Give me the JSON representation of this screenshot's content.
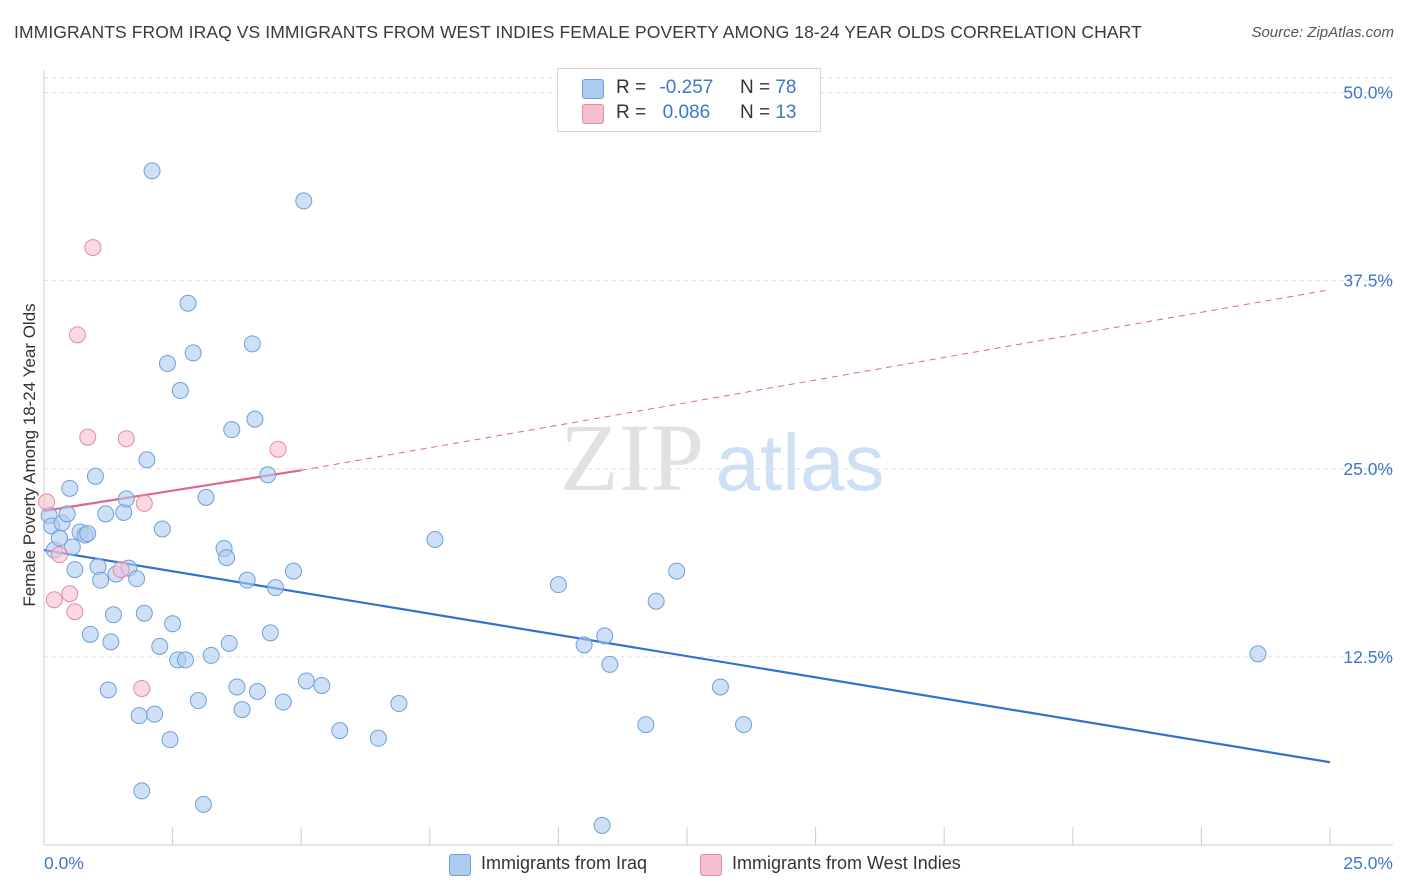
{
  "title": "IMMIGRANTS FROM IRAQ VS IMMIGRANTS FROM WEST INDIES FEMALE POVERTY AMONG 18-24 YEAR OLDS CORRELATION CHART",
  "source": "Source: ZipAtlas.com",
  "watermark": {
    "zip": "ZIP",
    "atlas": "atlas"
  },
  "legend": {
    "rows": [
      {
        "r_label": "R =",
        "r_value": "-0.257",
        "n_label": "N =",
        "n_value": "78"
      },
      {
        "r_label": "R =",
        "r_value": "0.086",
        "n_label": "N =",
        "n_value": "13"
      }
    ]
  },
  "colors": {
    "iraq_fill": "#aecbf0",
    "iraq_stroke": "#6f9fd8",
    "iraq_line": "#2f72cf",
    "wi_fill": "#f6bfd0",
    "wi_stroke": "#e48aa7",
    "wi_line": "#e0668f",
    "grid": "#dddddd",
    "tick_text": "#3c78c8"
  },
  "chart_data": {
    "type": "scatter",
    "title": "IMMIGRANTS FROM IRAQ VS IMMIGRANTS FROM WEST INDIES FEMALE POVERTY AMONG 18-24 YEAR OLDS CORRELATION CHART",
    "xlabel": "",
    "ylabel": "Female Poverty Among 18-24 Year Olds",
    "xlim": [
      0,
      25
    ],
    "ylim": [
      0,
      51.5
    ],
    "y_ticks": [
      12.5,
      25.0,
      37.5,
      50.0
    ],
    "y_tick_labels": [
      "12.5%",
      "25.0%",
      "37.5%",
      "50.0%"
    ],
    "x_tick_labels": [
      "0.0%",
      "25.0%"
    ],
    "grid": true,
    "legend_position": "top-center",
    "series": [
      {
        "name": "Immigrants from Iraq",
        "R": -0.257,
        "N": 78,
        "trend": {
          "x0": 0.0,
          "y0": 19.6,
          "x1": 25.0,
          "y1": 5.5,
          "dashed_extension": false
        },
        "points": [
          [
            0.1,
            21.9
          ],
          [
            0.15,
            21.2
          ],
          [
            0.2,
            19.6
          ],
          [
            0.3,
            20.4
          ],
          [
            0.35,
            21.4
          ],
          [
            0.45,
            22.0
          ],
          [
            0.5,
            23.7
          ],
          [
            0.55,
            19.8
          ],
          [
            0.6,
            18.3
          ],
          [
            0.7,
            20.8
          ],
          [
            0.8,
            20.6
          ],
          [
            0.85,
            20.7
          ],
          [
            0.9,
            14.0
          ],
          [
            1.0,
            24.5
          ],
          [
            1.05,
            18.5
          ],
          [
            1.1,
            17.6
          ],
          [
            1.2,
            22.0
          ],
          [
            1.25,
            10.3
          ],
          [
            1.3,
            13.5
          ],
          [
            1.35,
            15.3
          ],
          [
            1.4,
            18.0
          ],
          [
            1.55,
            22.1
          ],
          [
            1.6,
            23.0
          ],
          [
            1.65,
            18.4
          ],
          [
            1.8,
            17.7
          ],
          [
            1.85,
            8.6
          ],
          [
            1.9,
            3.6
          ],
          [
            1.95,
            15.4
          ],
          [
            2.0,
            25.6
          ],
          [
            2.1,
            44.8
          ],
          [
            2.15,
            8.7
          ],
          [
            2.25,
            13.2
          ],
          [
            2.3,
            21.0
          ],
          [
            2.4,
            32.0
          ],
          [
            2.45,
            7.0
          ],
          [
            2.5,
            14.7
          ],
          [
            2.6,
            12.3
          ],
          [
            2.65,
            30.2
          ],
          [
            2.75,
            12.3
          ],
          [
            2.8,
            36.0
          ],
          [
            2.9,
            32.7
          ],
          [
            3.0,
            9.6
          ],
          [
            3.1,
            2.7
          ],
          [
            3.15,
            23.1
          ],
          [
            3.25,
            12.6
          ],
          [
            3.5,
            19.7
          ],
          [
            3.55,
            19.1
          ],
          [
            3.6,
            13.4
          ],
          [
            3.65,
            27.6
          ],
          [
            3.75,
            10.5
          ],
          [
            3.85,
            9.0
          ],
          [
            3.95,
            17.6
          ],
          [
            4.05,
            33.3
          ],
          [
            4.1,
            28.3
          ],
          [
            4.15,
            10.2
          ],
          [
            4.35,
            24.6
          ],
          [
            4.4,
            14.1
          ],
          [
            4.5,
            17.1
          ],
          [
            4.65,
            9.5
          ],
          [
            4.85,
            18.2
          ],
          [
            5.05,
            42.8
          ],
          [
            5.1,
            10.9
          ],
          [
            5.4,
            10.6
          ],
          [
            5.75,
            7.6
          ],
          [
            6.5,
            7.1
          ],
          [
            6.9,
            9.4
          ],
          [
            7.6,
            20.3
          ],
          [
            10.0,
            17.3
          ],
          [
            10.5,
            13.3
          ],
          [
            10.85,
            1.3
          ],
          [
            10.9,
            13.9
          ],
          [
            11.0,
            12.0
          ],
          [
            11.7,
            8.0
          ],
          [
            11.9,
            16.2
          ],
          [
            12.3,
            18.2
          ],
          [
            13.15,
            10.5
          ],
          [
            13.6,
            8.0
          ],
          [
            23.6,
            12.7
          ]
        ]
      },
      {
        "name": "Immigrants from West Indies",
        "R": 0.086,
        "N": 13,
        "trend": {
          "x0": 0.0,
          "y0": 22.2,
          "x1": 5.0,
          "y1": 24.9,
          "dashed_to_x": 25.0,
          "dashed_to_y": 36.9
        },
        "points": [
          [
            0.05,
            22.8
          ],
          [
            0.2,
            16.3
          ],
          [
            0.3,
            19.3
          ],
          [
            0.5,
            16.7
          ],
          [
            0.6,
            15.5
          ],
          [
            0.65,
            33.9
          ],
          [
            0.85,
            27.1
          ],
          [
            0.95,
            39.7
          ],
          [
            1.5,
            18.3
          ],
          [
            1.6,
            27.0
          ],
          [
            1.9,
            10.4
          ],
          [
            1.95,
            22.7
          ],
          [
            4.55,
            26.3
          ]
        ]
      }
    ]
  },
  "bottom_legend": {
    "iraq_label": "Immigrants from Iraq",
    "wi_label": "Immigrants from West Indies"
  }
}
